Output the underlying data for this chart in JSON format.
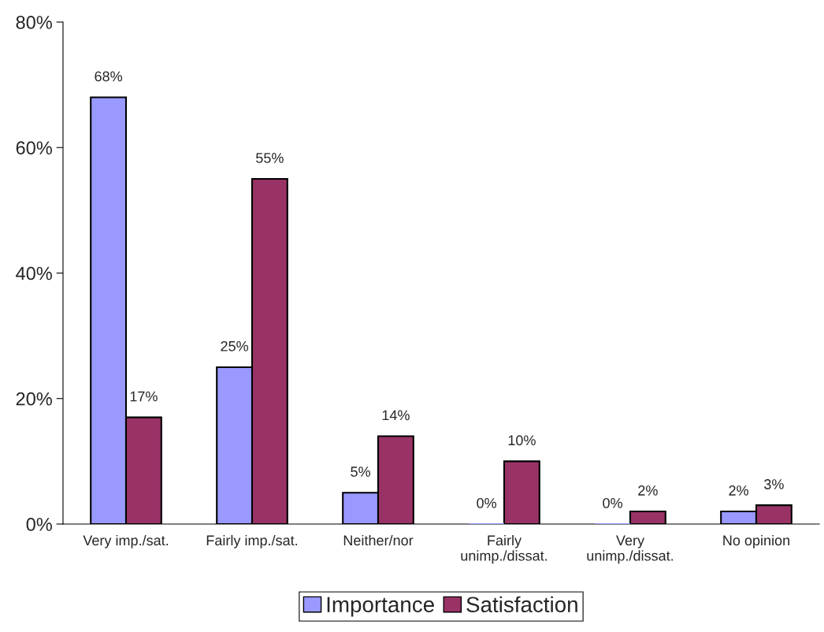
{
  "chart_data": {
    "type": "bar",
    "categories": [
      "Very imp./sat.",
      "Fairly imp./sat.",
      "Neither/nor",
      "Fairly\nunimp./dissat.",
      "Very\nunimp./dissat.",
      "No opinion"
    ],
    "series": [
      {
        "name": "Importance",
        "color": "#9999ff",
        "values": [
          68,
          25,
          5,
          0,
          0,
          2
        ],
        "value_labels": [
          "68%",
          "25%",
          "5%",
          "0%",
          "0%",
          "2%"
        ]
      },
      {
        "name": "Satisfaction",
        "color": "#993366",
        "values": [
          17,
          55,
          14,
          10,
          2,
          3
        ],
        "value_labels": [
          "17%",
          "55%",
          "14%",
          "10%",
          "2%",
          "3%"
        ]
      }
    ],
    "ylim": [
      0,
      80
    ],
    "yticks": [
      {
        "value": 0,
        "label": "0%"
      },
      {
        "value": 20,
        "label": "20%"
      },
      {
        "value": 40,
        "label": "40%"
      },
      {
        "value": 60,
        "label": "60%"
      },
      {
        "value": 80,
        "label": "80%"
      }
    ],
    "grid": false,
    "legend": "bottom"
  }
}
